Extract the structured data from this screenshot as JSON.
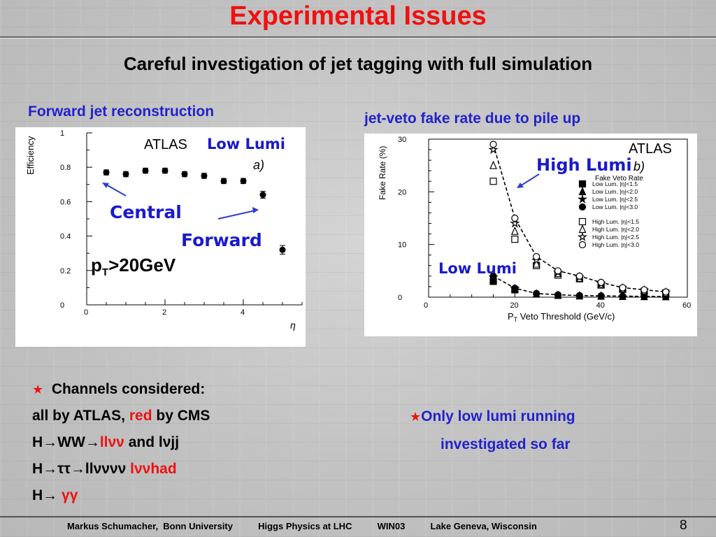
{
  "slide": {
    "title": "Experimental Issues",
    "subtitle": "Careful investigation of jet tagging with full simulation",
    "page_number": "8",
    "footer": {
      "author": "Markus Schumacher,  Bonn University",
      "talk": "Higgs Physics at LHC",
      "conference": "WIN03",
      "place": "Lake Geneva, Wisconsin"
    },
    "colors": {
      "title": "#ee1111",
      "heading": "#2222cc",
      "red": "#ee1111"
    }
  },
  "left_panel": {
    "heading": "Forward jet reconstruction",
    "atlas_label": "ATLAS",
    "lumi_label": "Low Lumi",
    "panel_tag": "a)",
    "central_label": "Central",
    "forward_label": "Forward",
    "pt_cut_main": "p",
    "pt_cut_sub": "T",
    "pt_cut_rest": ">20GeV"
  },
  "right_panel": {
    "heading": "jet-veto fake rate due to pile up",
    "atlas_label": "ATLAS",
    "panel_tag": "b)",
    "high_lumi_label": "High Lumi",
    "low_lumi_label": "Low Lumi",
    "legend_title": "Fake Veto Rate"
  },
  "bullets": {
    "channels": "Channels considered:",
    "line1_a": "all by ATLAS,",
    "line1_red": "red",
    "line1_b": "by CMS",
    "line2_a": "H",
    "line2_b": "WW",
    "line2_red": "llνν",
    "line2_c": "and lνjj",
    "line3_a": "H",
    "line3_b": "ττ",
    "line3_c": "llνννν",
    "line3_red": "lννhad",
    "line4_a": "H",
    "line4_red": "γγ",
    "arrow": "→",
    "star": "★"
  },
  "right_note": {
    "line1": "Only low lumi running",
    "line2": "investigated so far"
  },
  "chart_data": [
    {
      "type": "scatter",
      "title": "",
      "xlabel": "η",
      "ylabel": "Efficiency",
      "xlim": [
        0,
        5.5
      ],
      "ylim": [
        0,
        1
      ],
      "xticks": [
        0,
        2,
        4
      ],
      "yticks": [
        0,
        0.2,
        0.4,
        0.6,
        0.8,
        1
      ],
      "ytick_labels": [
        "0",
        "0.2",
        "0.4",
        "0.6",
        "0.8",
        "1"
      ],
      "series": [
        {
          "marker": "filled-circle",
          "x": [
            0.5,
            1.0,
            1.5,
            2.0,
            2.5,
            3.0,
            3.5,
            4.0,
            4.5,
            5.0
          ],
          "y": [
            0.77,
            0.76,
            0.78,
            0.78,
            0.76,
            0.75,
            0.72,
            0.72,
            0.64,
            0.32
          ],
          "err": [
            0.015,
            0.015,
            0.015,
            0.015,
            0.015,
            0.015,
            0.015,
            0.015,
            0.02,
            0.025
          ]
        }
      ]
    },
    {
      "type": "line",
      "title": "",
      "xlabel": "P_T Veto Threshold (GeV/c)",
      "xlabel_main": "P",
      "xlabel_sub": "T",
      "xlabel_rest": " Veto Threshold (GeV/c)",
      "ylabel": "Fake Rate (%)",
      "xlim": [
        0,
        60
      ],
      "ylim": [
        0,
        30
      ],
      "xticks": [
        0,
        20,
        40,
        60
      ],
      "yticks": [
        0,
        10,
        20,
        30
      ],
      "legend_position": "right",
      "series": [
        {
          "name": "Low Lum. |η|<1.5",
          "marker": "filled-square",
          "x": [
            15,
            20
          ],
          "y": [
            3.0,
            1.4
          ]
        },
        {
          "name": "Low Lum. |η|<2.0",
          "marker": "filled-triangle",
          "x": [
            15,
            20,
            25,
            30,
            35,
            40,
            45,
            50,
            55
          ],
          "y": [
            3.5,
            1.5,
            0.6,
            0.35,
            0.25,
            0.2,
            0.15,
            0.12,
            0.1
          ]
        },
        {
          "name": "Low Lum. |η|<2.5",
          "marker": "filled-star",
          "x": [
            15,
            20
          ],
          "y": [
            3.8,
            1.6
          ]
        },
        {
          "name": "Low Lum. |η|<3.0",
          "marker": "filled-circle",
          "x": [
            15,
            20,
            25,
            30,
            35,
            40,
            45,
            50,
            55
          ],
          "y": [
            4.0,
            1.7,
            0.7,
            0.45,
            0.3,
            0.25,
            0.2,
            0.15,
            0.12
          ]
        },
        {
          "name": "High Lum. |η|<1.5",
          "marker": "open-square",
          "x": [
            15,
            20,
            25,
            30,
            35,
            40,
            45,
            50,
            55
          ],
          "y": [
            22,
            11,
            6,
            4.2,
            3.5,
            2.3,
            1.5,
            1.1,
            0.8
          ]
        },
        {
          "name": "High Lum. |η|<2.0",
          "marker": "open-triangle",
          "x": [
            15,
            20,
            25,
            30,
            35,
            40,
            45,
            50,
            55
          ],
          "y": [
            25,
            12.5,
            6.3,
            4.5,
            3.6,
            2.5,
            1.6,
            1.2,
            0.8
          ]
        },
        {
          "name": "High Lum. |η|<2.5",
          "marker": "open-star",
          "x": [
            15,
            20,
            25,
            30,
            35,
            40,
            45,
            50,
            55
          ],
          "y": [
            28,
            14,
            7,
            4.7,
            3.8,
            2.6,
            1.7,
            1.3,
            0.9
          ]
        },
        {
          "name": "High Lum. |η|<3.0",
          "marker": "open-circle",
          "x": [
            15,
            20,
            25,
            30,
            35,
            40,
            45,
            50,
            55
          ],
          "y": [
            29,
            15,
            7.7,
            5,
            4,
            2.8,
            1.8,
            1.4,
            1.0
          ]
        }
      ]
    }
  ]
}
